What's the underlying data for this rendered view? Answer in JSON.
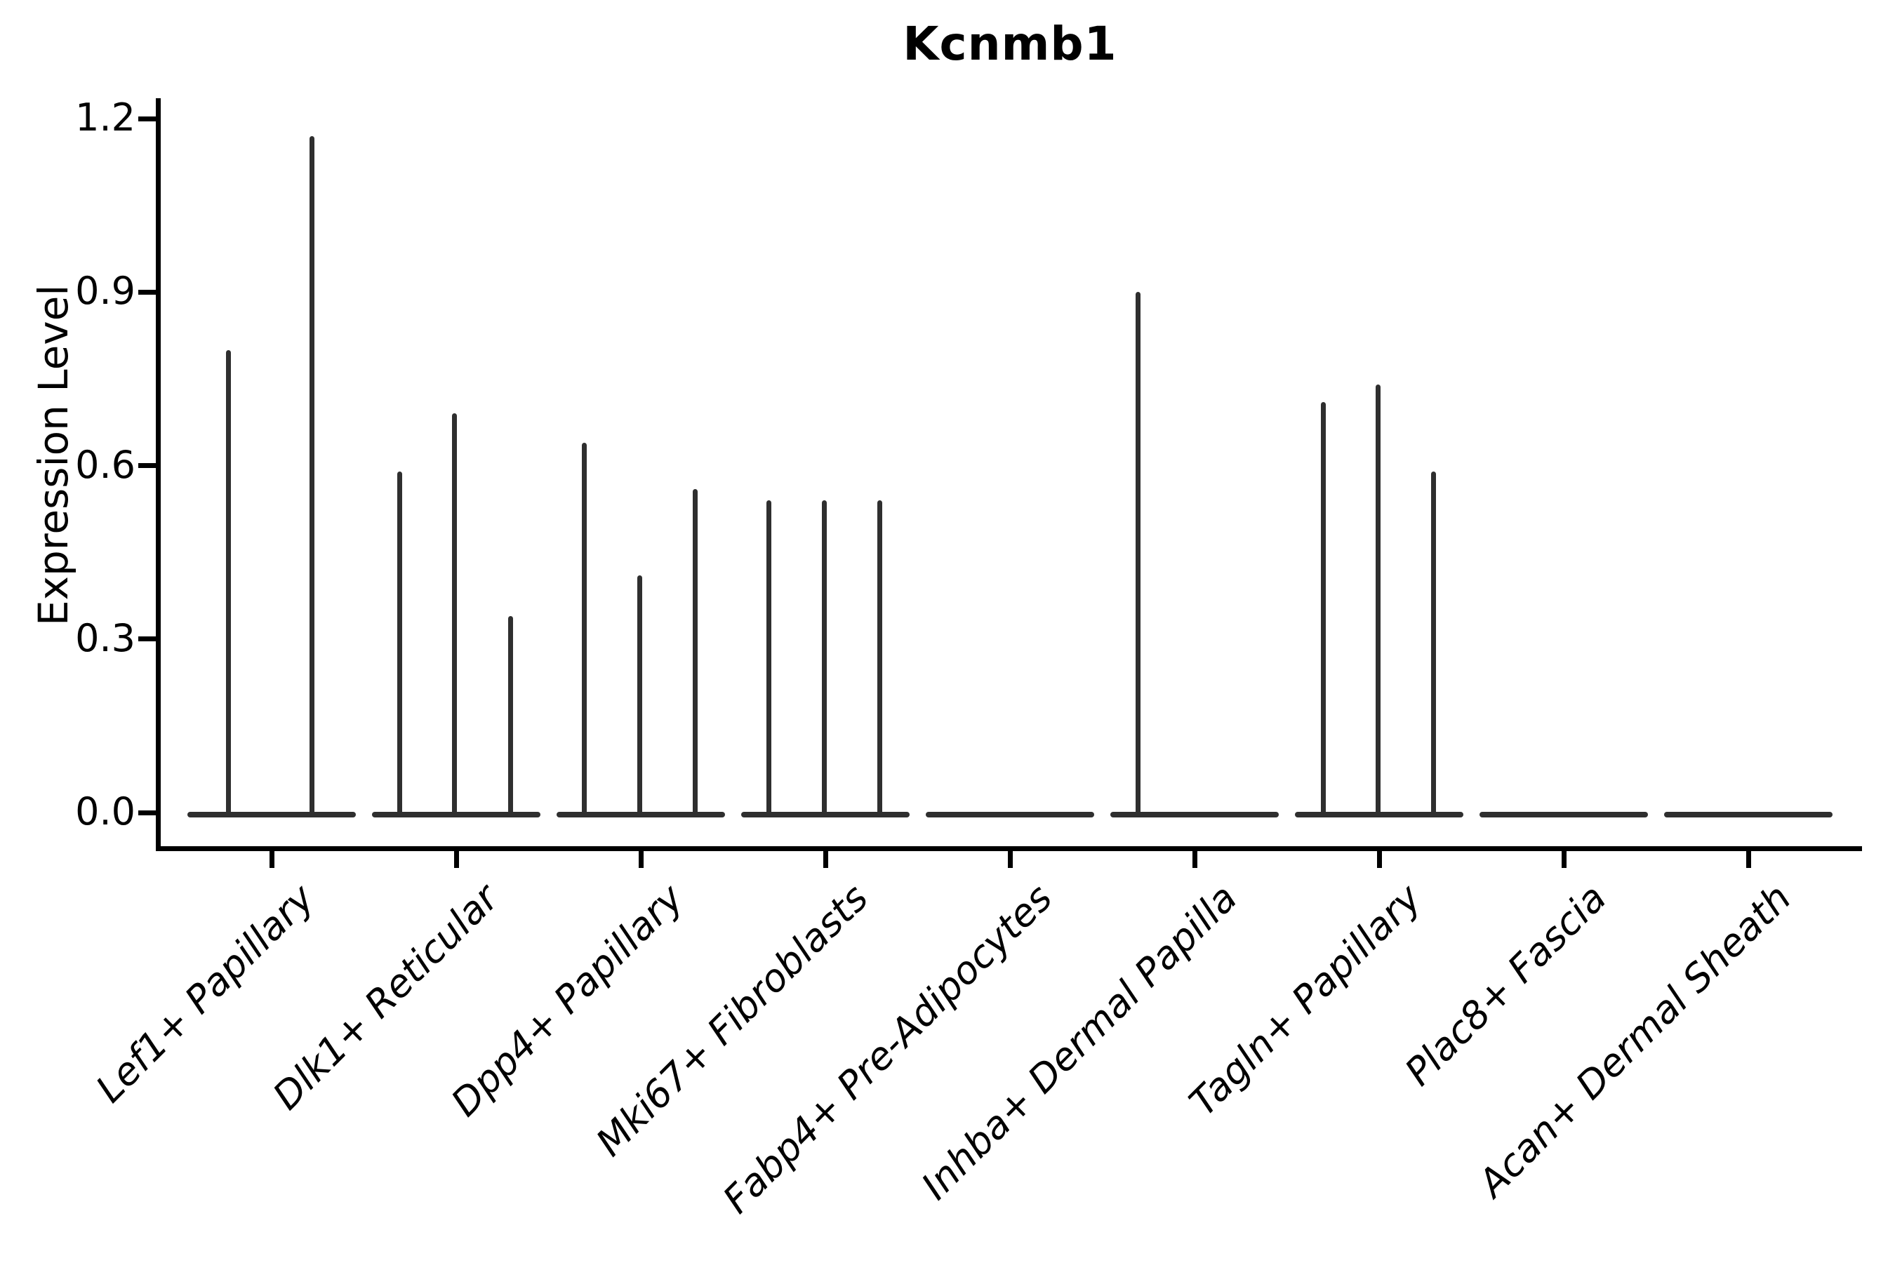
{
  "title": "Kcnmb1",
  "axes": {
    "ylabel": "Expression Level",
    "ytick_labels": [
      "0.0",
      "0.3",
      "0.6",
      "0.9",
      "1.2"
    ]
  },
  "chart_data": {
    "type": "violin",
    "title": "Kcnmb1",
    "xlabel": "",
    "ylabel": "Expression Level",
    "ylim": [
      0,
      1.26
    ],
    "yticks": [
      0.0,
      0.3,
      0.6,
      0.9,
      1.2
    ],
    "grid": false,
    "legend": "none",
    "style_note": "sparse expression violins: flat dark baseline at 0 per category with thin needle-like spikes; spike dx is horizontal offset in px from category center (sub-violin position), value is expression level at spike tip",
    "categories": [
      "Lef1+ Papillary",
      "Dlk1+ Reticular",
      "Dpp4+ Papillary",
      "Mki67+ Fibroblasts",
      "Fabp4+ Pre-Adipocytes",
      "Inhba+ Dermal Papilla",
      "Tagln+ Papillary",
      "Plac8+ Fascia",
      "Acan+ Dermal Sheath"
    ],
    "series": [
      {
        "name": "Lef1+ Papillary",
        "spikes": [
          {
            "dx": -62,
            "value": 0.8
          },
          {
            "dx": 57,
            "value": 1.17
          }
        ]
      },
      {
        "name": "Dlk1+ Reticular",
        "spikes": [
          {
            "dx": -81,
            "value": 0.59
          },
          {
            "dx": -3,
            "value": 0.69
          },
          {
            "dx": 77,
            "value": 0.34
          }
        ]
      },
      {
        "name": "Dpp4+ Papillary",
        "spikes": [
          {
            "dx": -81,
            "value": 0.64
          },
          {
            "dx": -2,
            "value": 0.41
          },
          {
            "dx": 77,
            "value": 0.56
          }
        ]
      },
      {
        "name": "Mki67+ Fibroblasts",
        "spikes": [
          {
            "dx": -81,
            "value": 0.54
          },
          {
            "dx": -2,
            "value": 0.54
          },
          {
            "dx": 77,
            "value": 0.54
          }
        ]
      },
      {
        "name": "Fabp4+ Pre-Adipocytes",
        "spikes": []
      },
      {
        "name": "Inhba+ Dermal Papilla",
        "spikes": [
          {
            "dx": -81,
            "value": 0.9
          }
        ]
      },
      {
        "name": "Tagln+ Papillary",
        "spikes": [
          {
            "dx": -80,
            "value": 0.71
          },
          {
            "dx": -2,
            "value": 0.74
          },
          {
            "dx": 77,
            "value": 0.59
          }
        ]
      },
      {
        "name": "Plac8+ Fascia",
        "spikes": []
      },
      {
        "name": "Acan+ Dermal Sheath",
        "spikes": []
      }
    ]
  }
}
